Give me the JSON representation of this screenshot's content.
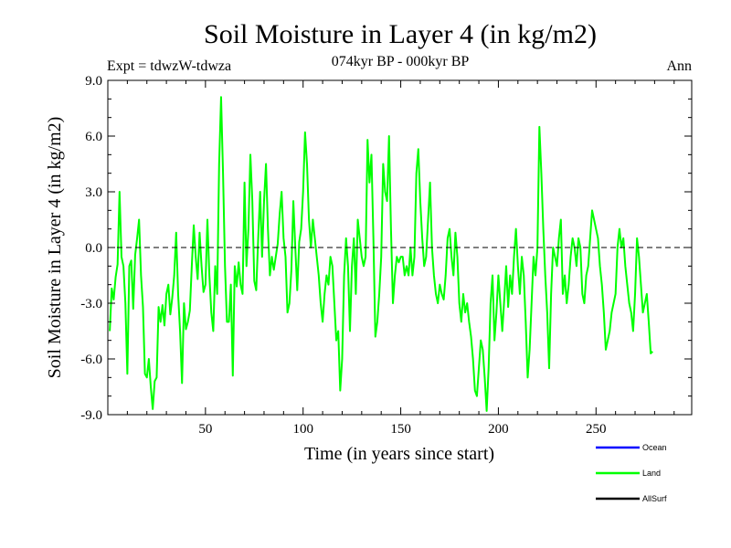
{
  "chart_data": {
    "type": "line",
    "title": "Soil Moisture in Layer 4 (in kg/m2)",
    "subtitle": "074kyr BP - 000kyr BP",
    "experiment_label": "Expt = tdwzW-tdwza",
    "season_label": "Ann",
    "xlabel": "Time (in years since start)",
    "ylabel": "Soil Moisture in Layer 4 (in kg/m2)",
    "xlim": [
      0,
      299
    ],
    "ylim": [
      -9.0,
      9.0
    ],
    "x_ticks": [
      50,
      100,
      150,
      200,
      250
    ],
    "y_ticks": [
      -9.0,
      -6.0,
      -3.0,
      0.0,
      3.0,
      6.0,
      9.0
    ],
    "y_tick_labels": [
      "-9.0",
      "-6.0",
      "-3.0",
      "0.0",
      "3.0",
      "6.0",
      "9.0"
    ],
    "zero_line": "dashed",
    "legend_position": "bottom-right",
    "series": [
      {
        "name": "Ocean",
        "color": "#0000ff",
        "values": []
      },
      {
        "name": "Land",
        "color": "#00ff00",
        "x_start": 1,
        "x_step": 1,
        "values": [
          -4.5,
          -2.2,
          -2.8,
          -1.6,
          -0.9,
          3.0,
          -0.5,
          -1.0,
          -3.0,
          -6.8,
          -1.0,
          -0.7,
          -3.3,
          -0.4,
          0.5,
          1.5,
          -1.5,
          -3.2,
          -6.8,
          -7.0,
          -6.0,
          -7.5,
          -8.7,
          -7.2,
          -7.0,
          -3.2,
          -4.0,
          -3.1,
          -4.2,
          -2.5,
          -2.0,
          -3.6,
          -2.7,
          -1.5,
          0.8,
          -2.5,
          -4.5,
          -7.3,
          -3.0,
          -4.4,
          -4.0,
          -3.4,
          -1.0,
          1.2,
          -0.5,
          -1.7,
          0.8,
          -1.0,
          -2.4,
          -2.0,
          1.5,
          -1.5,
          -3.5,
          -4.5,
          -1.0,
          -2.5,
          4.5,
          8.1,
          4.0,
          -1.0,
          -4.0,
          -4.0,
          -2.0,
          -6.9,
          -1.0,
          -2.1,
          -0.8,
          -2.0,
          -2.5,
          3.5,
          -1.0,
          1.0,
          5.0,
          2.5,
          -1.8,
          -2.3,
          0.5,
          3.0,
          -0.5,
          2.5,
          4.5,
          1.0,
          -1.5,
          -0.5,
          -1.2,
          -0.5,
          0.2,
          1.8,
          3.0,
          0.5,
          -0.5,
          -3.5,
          -3.0,
          -1.2,
          2.5,
          0.0,
          -2.3,
          0.3,
          1.0,
          3.0,
          6.2,
          4.5,
          1.5,
          0.0,
          1.5,
          0.5,
          -0.5,
          -1.5,
          -3.0,
          -4.0,
          -2.5,
          -1.5,
          -2.0,
          -0.5,
          -1.0,
          -3.0,
          -5.0,
          -4.5,
          -7.7,
          -6.0,
          -1.5,
          0.5,
          -1.0,
          -4.5,
          -1.0,
          0.5,
          -2.5,
          1.5,
          0.5,
          -0.5,
          -1.0,
          -0.5,
          5.8,
          3.5,
          5.0,
          0.5,
          -4.8,
          -4.0,
          -2.5,
          -0.5,
          4.5,
          3.0,
          2.5,
          6.0,
          1.0,
          -3.0,
          -1.5,
          -0.5,
          -0.8,
          -0.5,
          -0.5,
          -1.5,
          -1.0,
          -1.5,
          0.0,
          -1.5,
          -0.5,
          4.0,
          5.3,
          2.5,
          0.5,
          -1.0,
          -0.5,
          1.5,
          3.5,
          0.0,
          -1.5,
          -2.5,
          -3.0,
          -2.0,
          -2.5,
          -2.8,
          -1.5,
          0.5,
          1.0,
          -0.5,
          -1.5,
          0.8,
          -0.5,
          -3.0,
          -4.0,
          -2.5,
          -3.5,
          -3.0,
          -4.0,
          -4.8,
          -6.0,
          -7.7,
          -8.0,
          -6.5,
          -5.0,
          -5.5,
          -7.0,
          -8.8,
          -6.5,
          -3.0,
          -1.5,
          -5.0,
          -3.5,
          -1.5,
          -3.0,
          -4.5,
          -2.8,
          -1.0,
          -3.2,
          -1.5,
          -2.5,
          -0.5,
          1.0,
          -1.0,
          -2.5,
          -0.5,
          -1.5,
          -4.0,
          -7.0,
          -5.5,
          -3.0,
          -0.5,
          -1.5,
          0.0,
          6.5,
          4.0,
          1.0,
          -1.5,
          -3.5,
          -6.5,
          -2.5,
          0.0,
          -0.5,
          -1.0,
          0.5,
          1.5,
          -2.5,
          -1.5,
          -3.0,
          -2.0,
          -0.5,
          0.5,
          0.0,
          -1.0,
          0.5,
          0.0,
          -2.5,
          -3.0,
          -1.5,
          -1.0,
          0.5,
          2.0,
          1.5,
          1.0,
          0.5,
          -1.0,
          -2.0,
          -3.5,
          -5.5,
          -5.0,
          -4.5,
          -3.5,
          -3.0,
          -2.5,
          0.0,
          1.0,
          0.0,
          0.5,
          -1.0,
          -2.0,
          -3.0,
          -3.5,
          -4.5,
          -2.5,
          0.5,
          -0.5,
          -2.0,
          -3.5,
          -3.0,
          -2.5,
          -4.0,
          -5.7,
          -5.6
        ]
      },
      {
        "name": "AllSurf",
        "color": "#000000",
        "values": []
      }
    ]
  }
}
